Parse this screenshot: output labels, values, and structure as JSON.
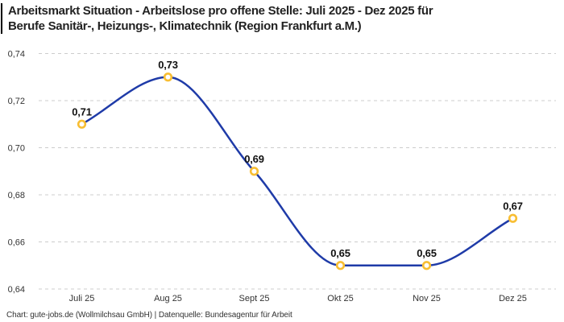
{
  "header": {
    "title_lines": [
      "Arbeitsmarkt Situation - Arbeitslose pro offene Stelle: Juli 2025 - Dez 2025 für",
      "Berufe Sanitär-, Heizungs-, Klimatechnik (Region Frankfurt a.M.)"
    ],
    "accent_color": "#000000"
  },
  "chart_data": {
    "type": "line",
    "title": "Arbeitsmarkt Situation - Arbeitslose pro offene Stelle: Juli 2025 - Dez 2025 für Berufe Sanitär-, Heizungs-, Klimatechnik (Region Frankfurt a.M.)",
    "categories": [
      "Juli 25",
      "Aug 25",
      "Sept 25",
      "Okt 25",
      "Nov 25",
      "Dez 25"
    ],
    "values": [
      0.71,
      0.73,
      0.69,
      0.65,
      0.65,
      0.67
    ],
    "point_labels": [
      "0,71",
      "0,73",
      "0,69",
      "0,65",
      "0,65",
      "0,67"
    ],
    "y_ticks": [
      "0,74",
      "0,72",
      "0,70",
      "0,68",
      "0,66",
      "0,64"
    ],
    "y_tick_values": [
      0.74,
      0.72,
      0.7,
      0.68,
      0.66,
      0.64
    ],
    "ylim": [
      0.64,
      0.74
    ],
    "xlabel": "",
    "ylabel": "",
    "grid": "horizontal-dashed",
    "legend": "none",
    "curve": "monotone",
    "line_color": "#1f3ba8",
    "marker_color": "#f8be33",
    "marker_fill": "#ffffff",
    "grid_color": "#cccccc"
  },
  "footer": {
    "credit": "Chart: gute-jobs.de (Wollmilchsau GmbH) | Datenquelle: Bundesagentur für Arbeit"
  }
}
